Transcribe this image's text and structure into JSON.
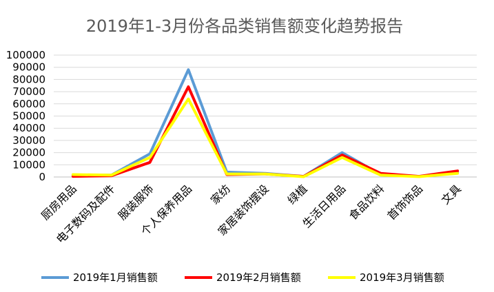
{
  "chart_data": {
    "type": "line",
    "title": "2019年1-3月份各品类销售额变化趋势报告",
    "xlabel": "",
    "ylabel": "",
    "ylim": [
      0,
      100000
    ],
    "yticks": [
      "0",
      "10000",
      "20000",
      "30000",
      "40000",
      "50000",
      "60000",
      "70000",
      "80000",
      "90000",
      "100000"
    ],
    "grid": true,
    "legend_position": "bottom",
    "categories": [
      "厨房用品",
      "电子数码及配件",
      "服装服饰",
      "个人保养用品",
      "家纺",
      "家居装饰摆设",
      "绿植",
      "生活日用品",
      "食品饮料",
      "首饰饰品",
      "文具"
    ],
    "series": [
      {
        "name": "2019年1月销售额",
        "color": "#5b9bd5",
        "values": [
          1500,
          1500,
          19000,
          88000,
          4000,
          3000,
          500,
          20000,
          2000,
          500,
          3500
        ]
      },
      {
        "name": "2019年2月销售额",
        "color": "#ff0000",
        "values": [
          500,
          1000,
          12000,
          74000,
          2000,
          2500,
          500,
          18000,
          3000,
          500,
          5000
        ]
      },
      {
        "name": "2019年3月销售额",
        "color": "#ffff00",
        "values": [
          2000,
          1500,
          16000,
          64000,
          2500,
          2500,
          200,
          16000,
          1500,
          300,
          3000
        ]
      }
    ]
  }
}
